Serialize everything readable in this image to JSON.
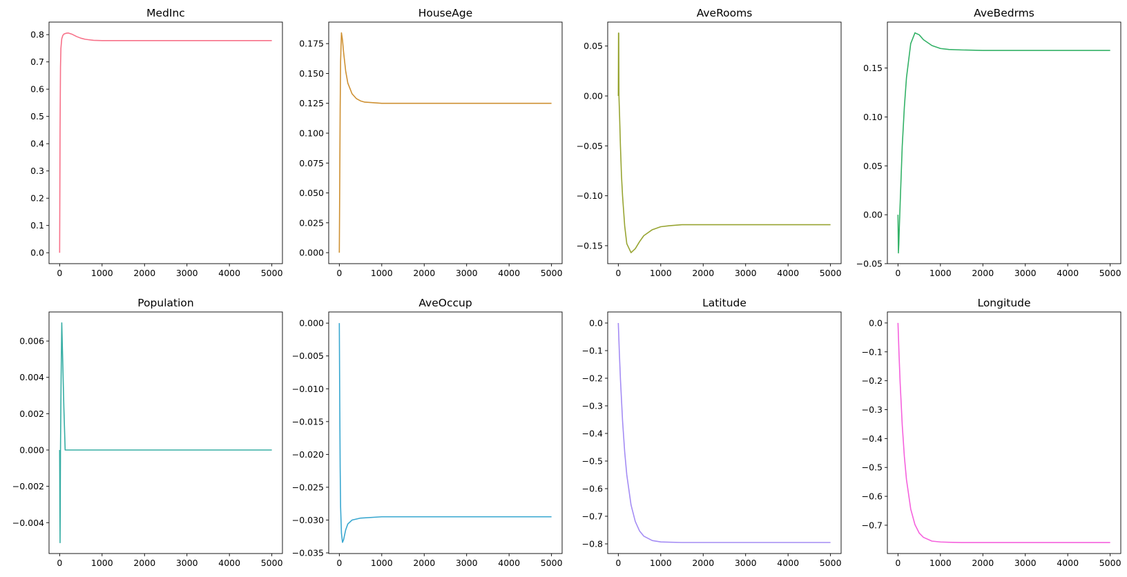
{
  "chart_data": [
    {
      "type": "line",
      "title": "MedInc",
      "color": "#f77189",
      "xlim": [
        -250,
        5250
      ],
      "ylim": [
        -0.04,
        0.846
      ],
      "xticks": [
        0,
        1000,
        2000,
        3000,
        4000,
        5000
      ],
      "xtick_labels": [
        "0",
        "1000",
        "2000",
        "3000",
        "4000",
        "5000"
      ],
      "yticks": [
        0,
        0.1,
        0.2,
        0.3,
        0.4,
        0.5,
        0.6,
        0.7,
        0.8
      ],
      "ytick_labels": [
        "0.0",
        "0.1",
        "0.2",
        "0.3",
        "0.4",
        "0.5",
        "0.6",
        "0.7",
        "0.8"
      ],
      "points": [
        [
          0,
          0
        ],
        [
          10,
          0.45
        ],
        [
          20,
          0.68
        ],
        [
          30,
          0.75
        ],
        [
          50,
          0.785
        ],
        [
          75,
          0.797
        ],
        [
          100,
          0.802
        ],
        [
          150,
          0.805
        ],
        [
          200,
          0.806
        ],
        [
          300,
          0.801
        ],
        [
          400,
          0.793
        ],
        [
          500,
          0.787
        ],
        [
          600,
          0.783
        ],
        [
          800,
          0.779
        ],
        [
          1000,
          0.778
        ],
        [
          1200,
          0.778
        ],
        [
          2000,
          0.778
        ],
        [
          5000,
          0.778
        ]
      ]
    },
    {
      "type": "line",
      "title": "HouseAge",
      "color": "#ce9032",
      "xlim": [
        -250,
        5250
      ],
      "ylim": [
        -0.0092,
        0.193
      ],
      "xticks": [
        0,
        1000,
        2000,
        3000,
        4000,
        5000
      ],
      "xtick_labels": [
        "0",
        "1000",
        "2000",
        "3000",
        "4000",
        "5000"
      ],
      "yticks": [
        0,
        0.025,
        0.05,
        0.075,
        0.1,
        0.125,
        0.15,
        0.175
      ],
      "ytick_labels": [
        "0.000",
        "0.025",
        "0.050",
        "0.075",
        "0.100",
        "0.125",
        "0.150",
        "0.175"
      ],
      "points": [
        [
          0,
          0
        ],
        [
          10,
          0.06
        ],
        [
          20,
          0.12
        ],
        [
          30,
          0.16
        ],
        [
          50,
          0.184
        ],
        [
          75,
          0.178
        ],
        [
          100,
          0.168
        ],
        [
          150,
          0.152
        ],
        [
          200,
          0.142
        ],
        [
          300,
          0.133
        ],
        [
          400,
          0.129
        ],
        [
          500,
          0.127
        ],
        [
          600,
          0.126
        ],
        [
          800,
          0.1255
        ],
        [
          1000,
          0.125
        ],
        [
          2000,
          0.125
        ],
        [
          5000,
          0.125
        ]
      ]
    },
    {
      "type": "line",
      "title": "AveRooms",
      "color": "#97a431",
      "xlim": [
        -250,
        5250
      ],
      "ylim": [
        -0.168,
        0.074
      ],
      "xticks": [
        0,
        1000,
        2000,
        3000,
        4000,
        5000
      ],
      "xtick_labels": [
        "0",
        "1000",
        "2000",
        "3000",
        "4000",
        "5000"
      ],
      "yticks": [
        -0.15,
        -0.1,
        -0.05,
        0,
        0.05
      ],
      "ytick_labels": [
        "−0.15",
        "−0.10",
        "−0.05",
        "0.00",
        "0.05"
      ],
      "points": [
        [
          0,
          0
        ],
        [
          5,
          0.063
        ],
        [
          10,
          0.063
        ],
        [
          15,
          0.0
        ],
        [
          30,
          -0.02
        ],
        [
          50,
          -0.05
        ],
        [
          75,
          -0.08
        ],
        [
          100,
          -0.1
        ],
        [
          150,
          -0.13
        ],
        [
          200,
          -0.148
        ],
        [
          300,
          -0.157
        ],
        [
          400,
          -0.153
        ],
        [
          500,
          -0.146
        ],
        [
          600,
          -0.14
        ],
        [
          800,
          -0.134
        ],
        [
          1000,
          -0.131
        ],
        [
          1200,
          -0.13
        ],
        [
          1500,
          -0.129
        ],
        [
          5000,
          -0.129
        ]
      ]
    },
    {
      "type": "line",
      "title": "AveBedrms",
      "color": "#32b166",
      "xlim": [
        -250,
        5250
      ],
      "ylim": [
        -0.05,
        0.197
      ],
      "xticks": [
        0,
        1000,
        2000,
        3000,
        4000,
        5000
      ],
      "xtick_labels": [
        "0",
        "1000",
        "2000",
        "3000",
        "4000",
        "5000"
      ],
      "yticks": [
        -0.05,
        0,
        0.05,
        0.1,
        0.15
      ],
      "ytick_labels": [
        "−0.05",
        "0.00",
        "0.05",
        "0.10",
        "0.15"
      ],
      "points": [
        [
          0,
          0
        ],
        [
          10,
          -0.039
        ],
        [
          20,
          -0.03
        ],
        [
          30,
          -0.015
        ],
        [
          50,
          0.01
        ],
        [
          75,
          0.04
        ],
        [
          100,
          0.07
        ],
        [
          150,
          0.11
        ],
        [
          200,
          0.14
        ],
        [
          300,
          0.175
        ],
        [
          400,
          0.186
        ],
        [
          500,
          0.184
        ],
        [
          600,
          0.179
        ],
        [
          800,
          0.173
        ],
        [
          1000,
          0.17
        ],
        [
          1200,
          0.169
        ],
        [
          1500,
          0.1685
        ],
        [
          2000,
          0.168
        ],
        [
          5000,
          0.168
        ]
      ]
    },
    {
      "type": "line",
      "title": "Population",
      "color": "#36ada4",
      "xlim": [
        -250,
        5250
      ],
      "ylim": [
        -0.0057,
        0.0076
      ],
      "xticks": [
        0,
        1000,
        2000,
        3000,
        4000,
        5000
      ],
      "xtick_labels": [
        "0",
        "1000",
        "2000",
        "3000",
        "4000",
        "5000"
      ],
      "yticks": [
        -0.004,
        -0.002,
        0,
        0.002,
        0.004,
        0.006
      ],
      "ytick_labels": [
        "−0.004",
        "−0.002",
        "0.000",
        "0.002",
        "0.004",
        "0.006"
      ],
      "points": [
        [
          0,
          0
        ],
        [
          10,
          -0.0051
        ],
        [
          20,
          0
        ],
        [
          35,
          0.004
        ],
        [
          50,
          0.007
        ],
        [
          75,
          0.0047
        ],
        [
          100,
          0.0023
        ],
        [
          130,
          0
        ],
        [
          5000,
          0
        ]
      ]
    },
    {
      "type": "line",
      "title": "AveOccup",
      "color": "#39a7d0",
      "xlim": [
        -250,
        5250
      ],
      "ylim": [
        -0.0351,
        0.0017
      ],
      "xticks": [
        0,
        1000,
        2000,
        3000,
        4000,
        5000
      ],
      "xtick_labels": [
        "0",
        "1000",
        "2000",
        "3000",
        "4000",
        "5000"
      ],
      "yticks": [
        -0.035,
        -0.03,
        -0.025,
        -0.02,
        -0.015,
        -0.01,
        -0.005,
        0
      ],
      "ytick_labels": [
        "−0.035",
        "−0.030",
        "−0.025",
        "−0.020",
        "−0.015",
        "−0.010",
        "−0.005",
        "0.000"
      ],
      "points": [
        [
          0,
          0
        ],
        [
          10,
          -0.012
        ],
        [
          20,
          -0.022
        ],
        [
          30,
          -0.028
        ],
        [
          50,
          -0.032
        ],
        [
          75,
          -0.0334
        ],
        [
          100,
          -0.033
        ],
        [
          150,
          -0.0315
        ],
        [
          200,
          -0.0306
        ],
        [
          300,
          -0.03
        ],
        [
          500,
          -0.0297
        ],
        [
          1000,
          -0.0295
        ],
        [
          5000,
          -0.0295
        ]
      ]
    },
    {
      "type": "line",
      "title": "Latitude",
      "color": "#a48cf4",
      "xlim": [
        -250,
        5250
      ],
      "ylim": [
        -0.835,
        0.04
      ],
      "xticks": [
        0,
        1000,
        2000,
        3000,
        4000,
        5000
      ],
      "xtick_labels": [
        "0",
        "1000",
        "2000",
        "3000",
        "4000",
        "5000"
      ],
      "yticks": [
        -0.8,
        -0.7,
        -0.6,
        -0.5,
        -0.4,
        -0.3,
        -0.2,
        -0.1,
        0
      ],
      "ytick_labels": [
        "−0.8",
        "−0.7",
        "−0.6",
        "−0.5",
        "−0.4",
        "−0.3",
        "−0.2",
        "−0.1",
        "0.0"
      ],
      "points": [
        [
          0,
          0
        ],
        [
          25,
          -0.109
        ],
        [
          50,
          -0.203
        ],
        [
          100,
          -0.354
        ],
        [
          150,
          -0.466
        ],
        [
          200,
          -0.55
        ],
        [
          300,
          -0.659
        ],
        [
          400,
          -0.719
        ],
        [
          500,
          -0.753
        ],
        [
          600,
          -0.772
        ],
        [
          800,
          -0.788
        ],
        [
          1000,
          -0.793
        ],
        [
          1200,
          -0.794
        ],
        [
          1500,
          -0.795
        ],
        [
          5000,
          -0.795
        ]
      ]
    },
    {
      "type": "line",
      "title": "Longitude",
      "color": "#f561dd",
      "xlim": [
        -250,
        5250
      ],
      "ylim": [
        -0.798,
        0.038
      ],
      "xticks": [
        0,
        1000,
        2000,
        3000,
        4000,
        5000
      ],
      "xtick_labels": [
        "0",
        "1000",
        "2000",
        "3000",
        "4000",
        "5000"
      ],
      "yticks": [
        -0.7,
        -0.6,
        -0.5,
        -0.4,
        -0.3,
        -0.2,
        -0.1,
        0
      ],
      "ytick_labels": [
        "−0.7",
        "−0.6",
        "−0.5",
        "−0.4",
        "−0.3",
        "−0.2",
        "−0.1",
        "0.0"
      ],
      "points": [
        [
          0,
          0
        ],
        [
          25,
          -0.11
        ],
        [
          50,
          -0.204
        ],
        [
          100,
          -0.353
        ],
        [
          150,
          -0.462
        ],
        [
          200,
          -0.542
        ],
        [
          300,
          -0.644
        ],
        [
          400,
          -0.698
        ],
        [
          500,
          -0.727
        ],
        [
          600,
          -0.742
        ],
        [
          800,
          -0.755
        ],
        [
          1000,
          -0.758
        ],
        [
          1200,
          -0.759
        ],
        [
          1500,
          -0.76
        ],
        [
          5000,
          -0.76
        ]
      ]
    }
  ]
}
